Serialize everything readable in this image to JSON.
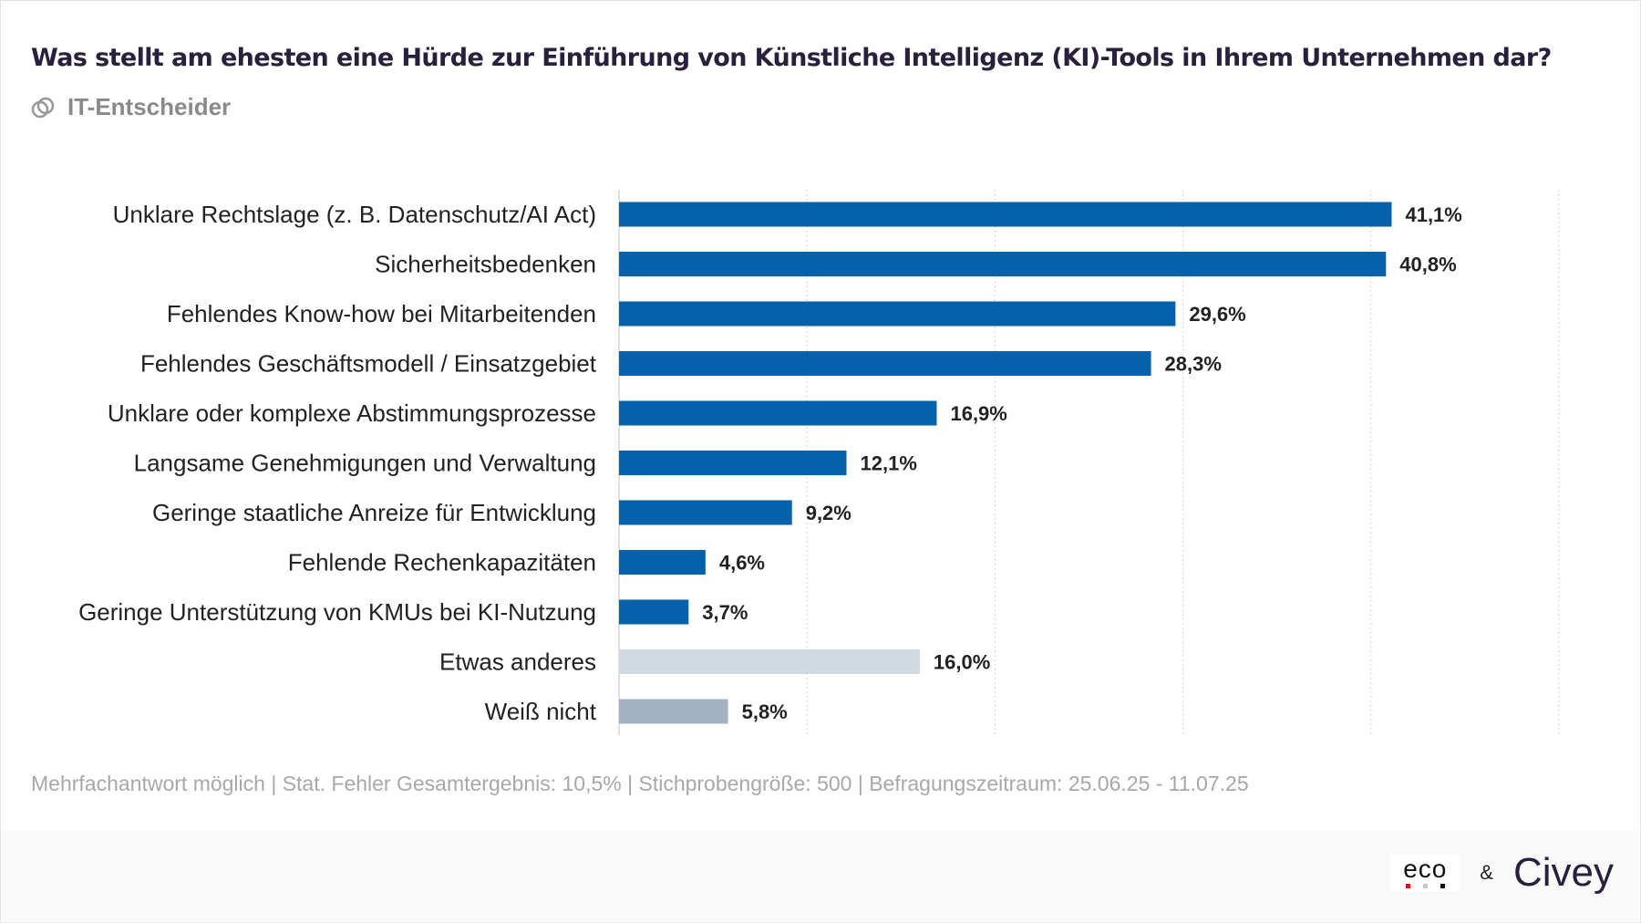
{
  "header": {
    "title": "Was stellt am ehesten eine Hürde zur Einführung von Künstliche Intelligenz (KI)-Tools in Ihrem Unternehmen dar?",
    "subtitle": "IT-Entscheider",
    "subtitle_icon": "linked-circles-icon"
  },
  "chart_data": {
    "type": "bar",
    "orientation": "horizontal",
    "xlim": [
      0,
      50
    ],
    "grid": true,
    "categories": [
      "Unklare Rechtslage (z. B. Datenschutz/AI Act)",
      "Sicherheitsbedenken",
      "Fehlendes Know-how bei Mitarbeitenden",
      "Fehlendes Geschäftsmodell / Einsatzgebiet",
      "Unklare oder komplexe Abstimmungsprozesse",
      "Langsame Genehmigungen und Verwaltung",
      "Geringe staatliche Anreize für Entwicklung",
      "Fehlende Rechenkapazitäten",
      "Geringe Unterstützung von KMUs bei KI-Nutzung",
      "Etwas anderes",
      "Weiß nicht"
    ],
    "values": [
      41.1,
      40.8,
      29.6,
      28.3,
      16.9,
      12.1,
      9.2,
      4.6,
      3.7,
      16.0,
      5.8
    ],
    "labels": [
      "41,1%",
      "40,8%",
      "29,6%",
      "28,3%",
      "16,9%",
      "12,1%",
      "9,2%",
      "4,6%",
      "3,7%",
      "16,0%",
      "5,8%"
    ],
    "colors": [
      "#0561aa",
      "#0561aa",
      "#0561aa",
      "#0561aa",
      "#0561aa",
      "#0561aa",
      "#0561aa",
      "#0561aa",
      "#0561aa",
      "#d1d9e1",
      "#a2b2c0"
    ]
  },
  "footer": {
    "note": "Mehrfachantwort möglich | Stat. Fehler Gesamtergebnis: 10,5% | Stichprobengröße: 500 | Befragungszeitraum: 25.06.25 - 11.07.25"
  },
  "logos": {
    "eco": "eco",
    "amp": "&",
    "civey": "Civey"
  }
}
